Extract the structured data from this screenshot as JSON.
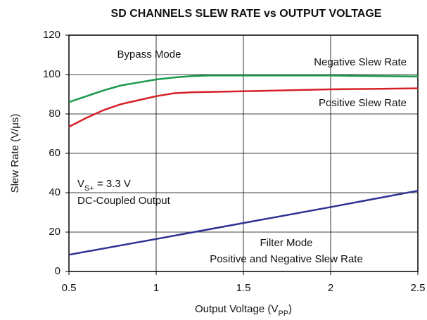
{
  "chart_data": {
    "type": "line",
    "title": "SD CHANNELS SLEW RATE vs OUTPUT VOLTAGE",
    "xlabel": [
      "Output Voltage (V",
      "PP",
      ")"
    ],
    "ylabel": "Slew Rate (V/μs)",
    "xlim": [
      0.5,
      2.5
    ],
    "xticks": [
      0.5,
      1,
      1.5,
      2,
      2.5
    ],
    "ylim": [
      0,
      120
    ],
    "yticks": [
      0,
      20,
      40,
      60,
      80,
      100,
      120
    ],
    "grid": true,
    "series": [
      {
        "name": "Negative Slew Rate",
        "color": "#1a9a4a",
        "x": [
          0.5,
          0.6,
          0.7,
          0.8,
          0.9,
          1.0,
          1.1,
          1.2,
          1.3,
          1.5,
          2.0,
          2.5
        ],
        "values": [
          86,
          89,
          92,
          94.5,
          96,
          97.5,
          98.5,
          99.2,
          99.5,
          99.5,
          99.5,
          99
        ]
      },
      {
        "name": "Positive Slew Rate",
        "color": "#d62027",
        "x": [
          0.5,
          0.6,
          0.7,
          0.8,
          0.9,
          1.0,
          1.1,
          1.2,
          1.5,
          2.0,
          2.5
        ],
        "values": [
          73.5,
          78,
          82,
          85,
          87,
          89,
          90.5,
          91,
          91.5,
          92.5,
          93
        ]
      },
      {
        "name": "Positive and Negative Slew Rate",
        "color": "#2e3192",
        "x": [
          0.5,
          1.0,
          1.5,
          2.0,
          2.5
        ],
        "values": [
          8.5,
          16.5,
          24.6,
          32.7,
          41
        ]
      }
    ],
    "annotations": [
      "Bypass Mode",
      "Filter Mode",
      [
        "V",
        "S+",
        " = 3.3 V"
      ],
      "DC-Coupled Output"
    ]
  }
}
